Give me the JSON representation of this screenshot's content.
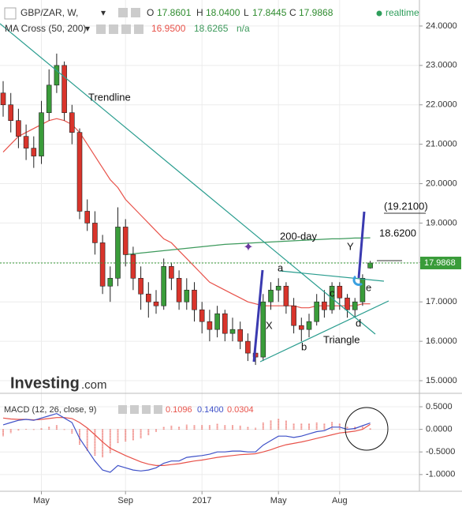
{
  "header": {
    "symbol": "GBP/ZAR, W,",
    "o_label": "O",
    "open": "17.8601",
    "h_label": "H",
    "high": "18.0400",
    "l_label": "L",
    "low": "17.8445",
    "c_label": "C",
    "close": "17.9868",
    "status": "realtime",
    "indicator": "MA Cross (50, 200)",
    "ma_fast": "16.9500",
    "ma_slow": "18.6265",
    "ma_cross": "n/a",
    "macd_label": "MACD (12, 26, close, 9)",
    "macd_signal": "0.1096",
    "macd_line": "0.1400",
    "macd_hist": "0.0304",
    "logo": "Investing",
    "logo_suffix": ".com"
  },
  "chart_data": {
    "type": "candlestick",
    "open": [
      22.3,
      22.0,
      21.6,
      21.2,
      20.9,
      20.7,
      21.8,
      22.5,
      23.0,
      21.8,
      21.3,
      19.3,
      19.0,
      18.5,
      17.4,
      17.6,
      18.9,
      18.2,
      17.6,
      17.2,
      17.0,
      16.9,
      17.9,
      17.6,
      17.0,
      17.3,
      16.8,
      16.5,
      16.3,
      16.7,
      16.2,
      16.3,
      16.0,
      15.7,
      15.6,
      17.0,
      17.3,
      17.4,
      16.9,
      16.4,
      16.3,
      16.5,
      17.0,
      16.8,
      17.4,
      17.1,
      16.8,
      17.0,
      17.8601
    ],
    "high": [
      22.6,
      22.3,
      21.9,
      21.5,
      21.2,
      22.1,
      22.9,
      23.3,
      23.1,
      22.0,
      21.4,
      19.6,
      19.3,
      18.7,
      17.9,
      19.4,
      19.1,
      18.4,
      17.9,
      17.5,
      17.3,
      18.1,
      18.0,
      17.8,
      17.6,
      17.5,
      17.0,
      16.8,
      16.9,
      16.8,
      16.6,
      16.5,
      16.2,
      15.9,
      17.2,
      17.5,
      17.6,
      17.5,
      17.1,
      16.6,
      16.7,
      17.2,
      17.3,
      17.5,
      17.5,
      17.2,
      17.1,
      17.7,
      18.04
    ],
    "low": [
      21.7,
      21.3,
      20.9,
      20.6,
      20.4,
      20.5,
      21.6,
      22.3,
      21.6,
      21.0,
      19.1,
      18.8,
      18.2,
      17.2,
      17.0,
      17.4,
      17.9,
      17.3,
      16.8,
      16.6,
      16.7,
      16.8,
      17.3,
      16.8,
      16.8,
      16.5,
      16.2,
      16.0,
      16.1,
      16.0,
      16.0,
      15.8,
      15.5,
      15.4,
      15.5,
      16.8,
      17.0,
      16.7,
      16.2,
      16.0,
      16.1,
      16.4,
      16.6,
      16.7,
      16.8,
      16.6,
      16.6,
      16.9,
      17.8445
    ],
    "close": [
      22.0,
      21.6,
      21.2,
      20.9,
      20.7,
      21.8,
      22.5,
      23.0,
      21.8,
      21.3,
      19.3,
      19.0,
      18.5,
      17.4,
      17.6,
      18.9,
      18.2,
      17.6,
      17.2,
      17.0,
      16.9,
      17.9,
      17.6,
      17.0,
      17.3,
      16.8,
      16.5,
      16.3,
      16.7,
      16.2,
      16.3,
      16.0,
      15.7,
      15.6,
      17.0,
      17.3,
      17.4,
      16.9,
      16.4,
      16.3,
      16.5,
      17.0,
      16.8,
      17.4,
      17.1,
      16.8,
      17.0,
      17.6,
      17.9868
    ],
    "up_color": "#3a9c3a",
    "down_color": "#d9342b",
    "moving_averages": [
      {
        "color": "#e8524a",
        "values": [
          20.8,
          21.0,
          21.2,
          21.3,
          21.4,
          21.5,
          21.6,
          21.65,
          21.6,
          21.5,
          21.3,
          21.0,
          20.7,
          20.4,
          20.1,
          19.9,
          19.6,
          19.4,
          19.2,
          19.0,
          18.8,
          18.6,
          18.5,
          18.3,
          18.1,
          17.9,
          17.7,
          17.5,
          17.4,
          17.3,
          17.2,
          17.1,
          17.0,
          16.95,
          16.9,
          16.9,
          16.9,
          16.9,
          16.9,
          16.85,
          16.85,
          16.9,
          16.9,
          16.9,
          16.9,
          16.9,
          16.9,
          16.95,
          16.95
        ]
      },
      {
        "color": "#3d9a5c",
        "values": [
          null,
          null,
          null,
          null,
          null,
          null,
          null,
          null,
          null,
          null,
          null,
          null,
          null,
          null,
          null,
          null,
          18.2,
          18.22,
          18.24,
          18.26,
          18.28,
          18.3,
          18.32,
          18.34,
          18.36,
          18.38,
          18.4,
          18.42,
          18.44,
          18.46,
          18.47,
          18.48,
          18.49,
          18.5,
          18.51,
          18.52,
          18.53,
          18.54,
          18.55,
          18.56,
          18.57,
          18.58,
          18.59,
          18.6,
          18.6,
          18.61,
          18.62,
          18.62,
          18.6265
        ]
      }
    ],
    "last_price": 17.9868,
    "last_price_color": "#3a9c3a",
    "ylim": [
      14.7,
      24.66
    ],
    "yticks": [
      {
        "value": 15,
        "label": "15.0000"
      },
      {
        "value": 16,
        "label": "16.0000"
      },
      {
        "value": 17,
        "label": "17.0000"
      },
      {
        "value": 18,
        "label": "18.0000"
      },
      {
        "value": 19,
        "label": "19.0000"
      },
      {
        "value": 20,
        "label": "20.0000"
      },
      {
        "value": 21,
        "label": "21.0000"
      },
      {
        "value": 22,
        "label": "22.0000"
      },
      {
        "value": 23,
        "label": "23.0000"
      },
      {
        "value": 24,
        "label": "24.0000"
      }
    ],
    "xticks": [
      {
        "value": 5,
        "label": "May"
      },
      {
        "value": 16,
        "label": "Sep"
      },
      {
        "value": 26,
        "label": "2017"
      },
      {
        "value": 36,
        "label": "May"
      },
      {
        "value": 44,
        "label": "Aug"
      }
    ],
    "grid": true,
    "annotations": {
      "trendline": "Trendline",
      "ma200": "200-day",
      "a": "a",
      "b": "b",
      "c": "c",
      "d": "d",
      "e": "e",
      "x": "X",
      "y": "Y",
      "triangle": "Triangle",
      "target": "(19.2100)",
      "level": "18.6200"
    },
    "macd": {
      "macd": [
        0.1,
        0.15,
        0.2,
        0.22,
        0.2,
        0.25,
        0.3,
        0.35,
        0.25,
        0.15,
        -0.2,
        -0.45,
        -0.7,
        -0.9,
        -0.95,
        -0.8,
        -0.85,
        -0.9,
        -0.92,
        -0.9,
        -0.85,
        -0.75,
        -0.7,
        -0.7,
        -0.62,
        -0.6,
        -0.58,
        -0.55,
        -0.5,
        -0.5,
        -0.48,
        -0.48,
        -0.5,
        -0.5,
        -0.35,
        -0.25,
        -0.15,
        -0.15,
        -0.18,
        -0.15,
        -0.1,
        -0.05,
        -0.03,
        0.05,
        0.05,
        0.0,
        0.02,
        0.08,
        0.14
      ],
      "signal": [
        0.25,
        0.23,
        0.22,
        0.22,
        0.21,
        0.22,
        0.24,
        0.26,
        0.26,
        0.24,
        0.15,
        0.03,
        -0.12,
        -0.28,
        -0.42,
        -0.5,
        -0.58,
        -0.65,
        -0.72,
        -0.77,
        -0.8,
        -0.8,
        -0.78,
        -0.76,
        -0.73,
        -0.7,
        -0.68,
        -0.65,
        -0.62,
        -0.6,
        -0.58,
        -0.56,
        -0.55,
        -0.54,
        -0.5,
        -0.45,
        -0.39,
        -0.34,
        -0.31,
        -0.28,
        -0.24,
        -0.2,
        -0.16,
        -0.12,
        -0.08,
        -0.06,
        -0.04,
        0.0,
        0.1096
      ],
      "histogram": [
        -0.15,
        -0.08,
        -0.02,
        0.0,
        -0.01,
        0.03,
        0.06,
        0.09,
        -0.01,
        -0.09,
        -0.35,
        -0.48,
        -0.58,
        -0.62,
        -0.53,
        -0.3,
        -0.27,
        -0.25,
        -0.2,
        -0.13,
        -0.05,
        0.05,
        0.08,
        0.06,
        0.11,
        0.1,
        0.1,
        0.1,
        0.12,
        0.1,
        0.1,
        0.08,
        0.05,
        0.04,
        0.15,
        0.2,
        0.24,
        0.19,
        0.13,
        0.13,
        0.14,
        0.15,
        0.13,
        0.17,
        0.13,
        0.06,
        0.06,
        0.08,
        0.0304
      ],
      "macd_color": "#3f51c8",
      "signal_color": "#e8524a",
      "histogram_color": "#e8524a",
      "ylim": [
        -1.37,
        0.71
      ],
      "yticks": [
        {
          "value": 0.5,
          "label": "0.5000"
        },
        {
          "value": 0,
          "label": "0.0000"
        },
        {
          "value": -0.5,
          "label": "-0.5000"
        },
        {
          "value": -1,
          "label": "-1.0000"
        }
      ]
    }
  }
}
